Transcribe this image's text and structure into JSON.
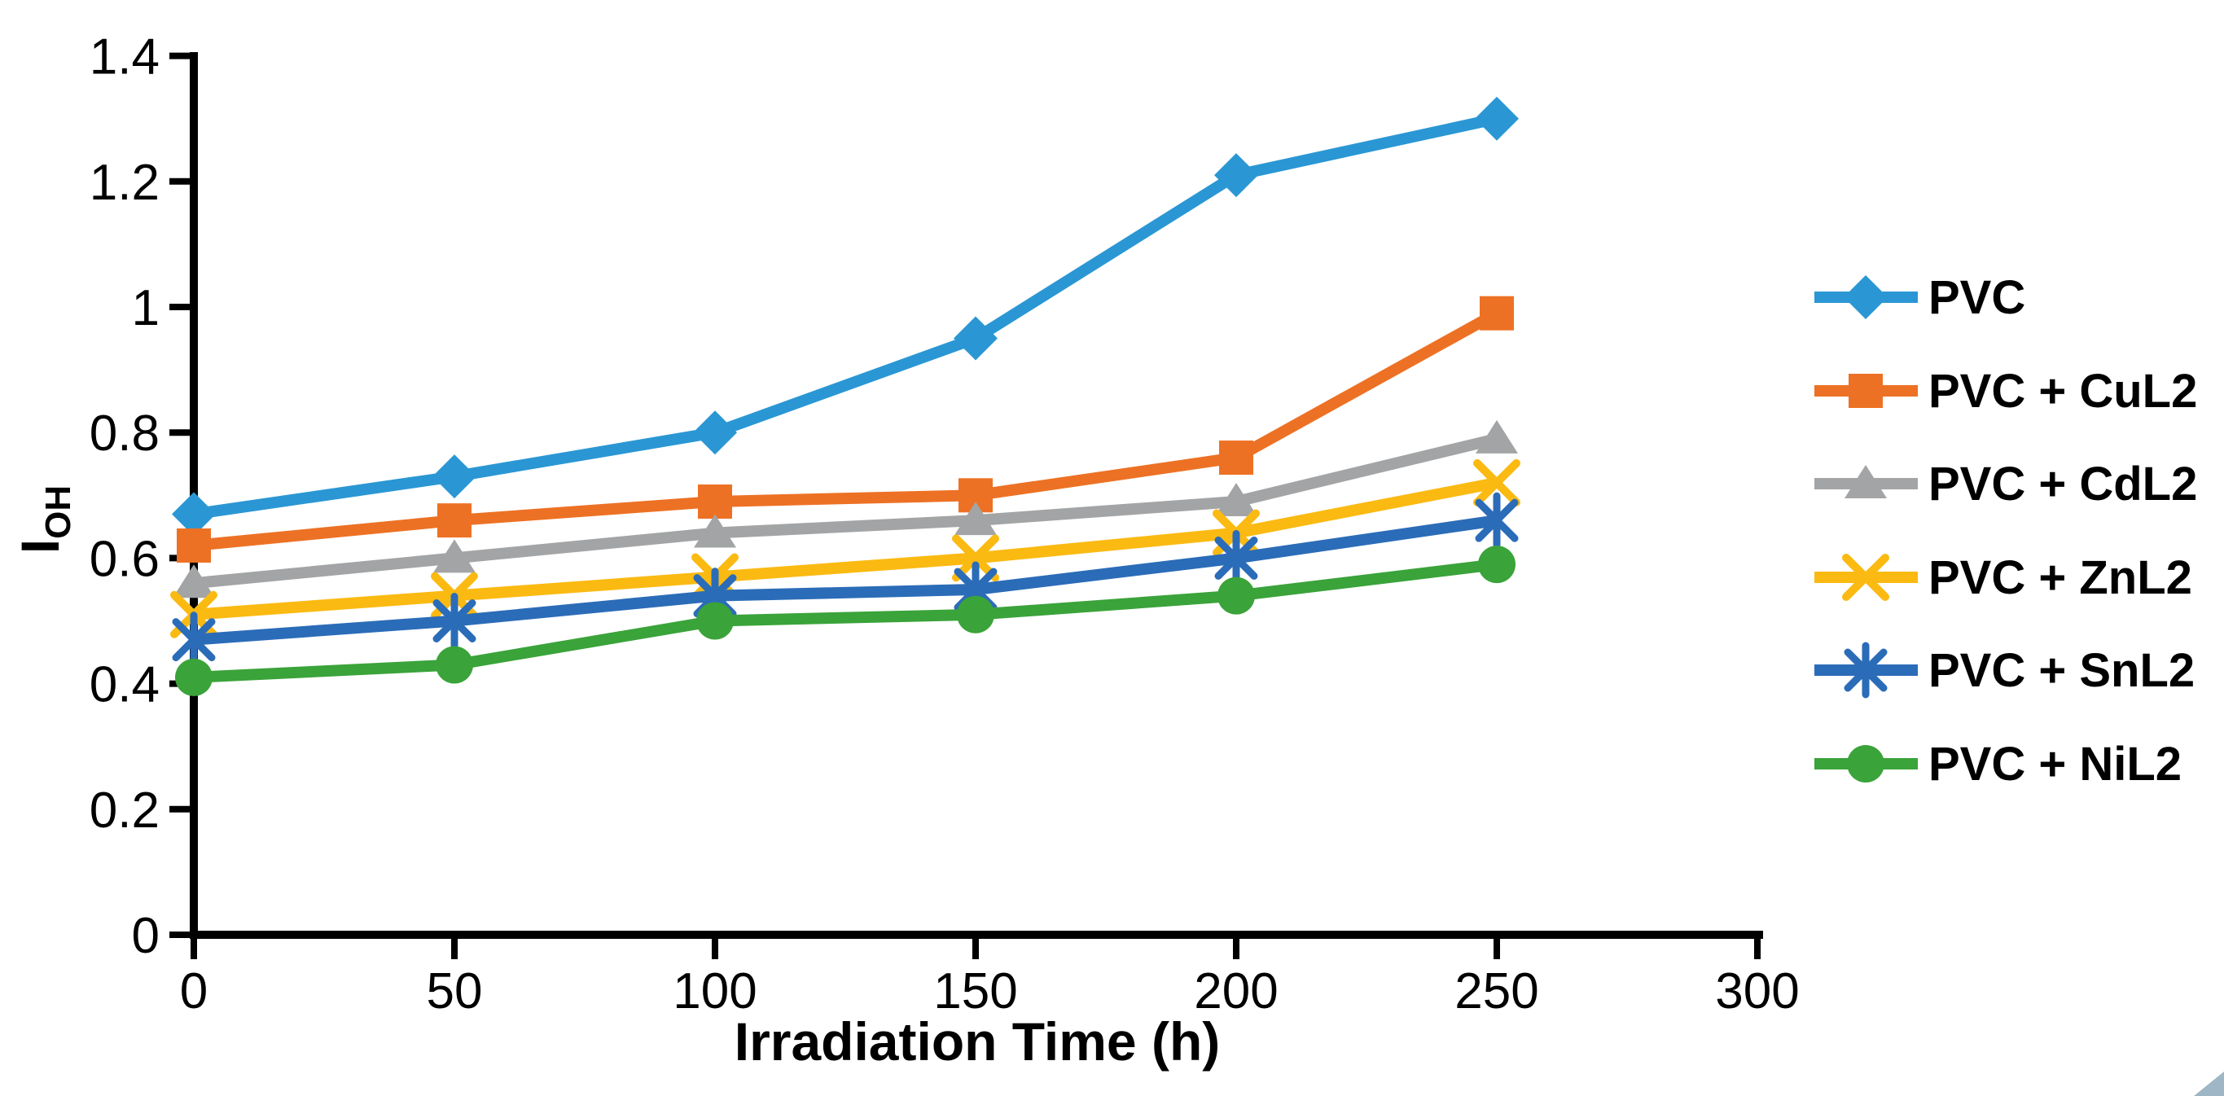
{
  "chart_data": {
    "type": "line",
    "title": "",
    "xlabel": "Irradiation Time (h)",
    "ylabel": "I_OH",
    "ylabel_main": "I",
    "ylabel_sub": "OH",
    "x": [
      0,
      50,
      100,
      150,
      200,
      250
    ],
    "x_tick_labels": [
      "0",
      "50",
      "100",
      "150",
      "200",
      "250",
      "300"
    ],
    "y_tick_labels": [
      "0",
      "0.2",
      "0.4",
      "0.6",
      "0.8",
      "1",
      "1.2",
      "1.4"
    ],
    "xlim": [
      0,
      300
    ],
    "ylim": [
      0,
      1.4
    ],
    "grid": false,
    "legend_position": "right",
    "axis_color": "#000000",
    "background_color": "#ffffff",
    "series": [
      {
        "name": "PVC",
        "color": "#2A97D4",
        "marker": "diamond",
        "values": [
          0.67,
          0.73,
          0.8,
          0.95,
          1.21,
          1.3
        ]
      },
      {
        "name": "PVC + CuL2",
        "color": "#ED7124",
        "marker": "square",
        "values": [
          0.62,
          0.66,
          0.69,
          0.7,
          0.76,
          0.99
        ]
      },
      {
        "name": "PVC + CdL2",
        "color": "#A3A4A5",
        "marker": "triangle",
        "values": [
          0.56,
          0.6,
          0.64,
          0.66,
          0.69,
          0.79
        ]
      },
      {
        "name": "PVC + ZnL2",
        "color": "#FBBA12",
        "marker": "x",
        "values": [
          0.51,
          0.54,
          0.57,
          0.6,
          0.64,
          0.72
        ]
      },
      {
        "name": "PVC + SnL2",
        "color": "#2B6CB8",
        "marker": "star",
        "values": [
          0.47,
          0.5,
          0.54,
          0.55,
          0.6,
          0.66
        ]
      },
      {
        "name": "PVC + NiL2",
        "color": "#3AA33A",
        "marker": "circle",
        "values": [
          0.41,
          0.43,
          0.5,
          0.51,
          0.54,
          0.59
        ]
      }
    ]
  },
  "corner_artifact": {
    "color": "#9FB6C6"
  }
}
